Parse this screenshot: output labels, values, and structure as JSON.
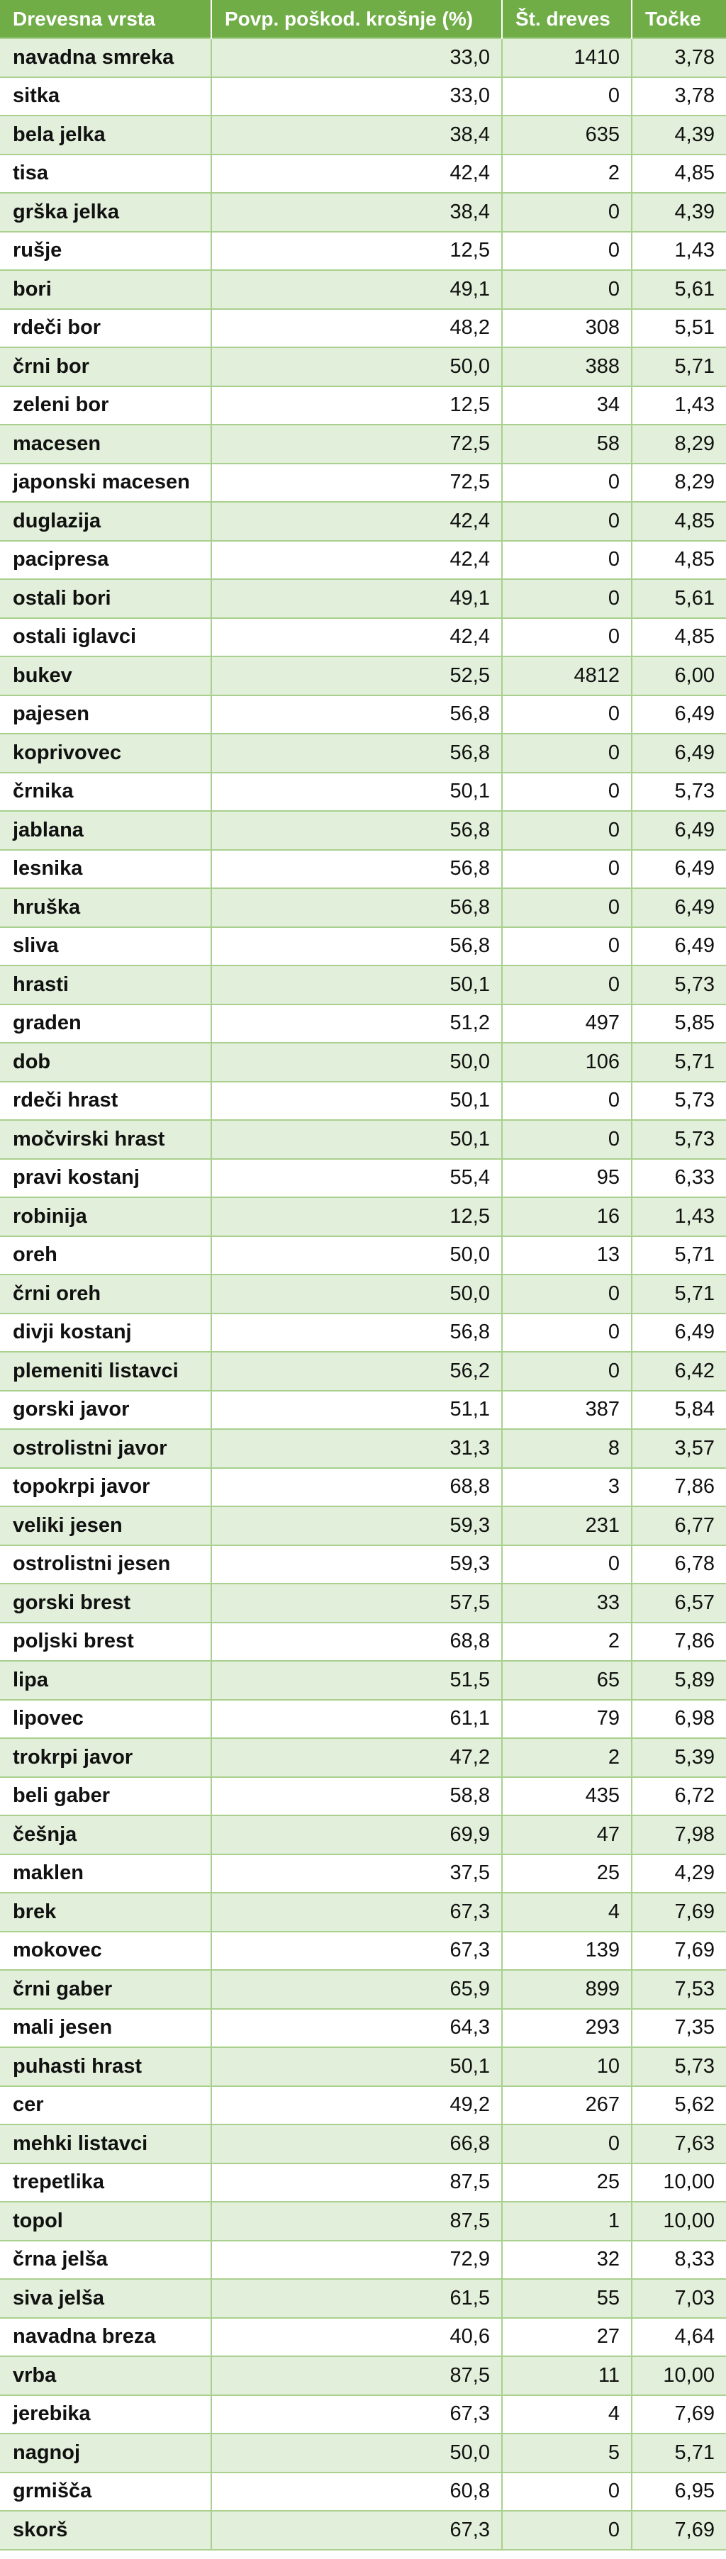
{
  "table": {
    "headers": [
      "Drevesna vrsta",
      "Povp. poškod. krošnje (%)",
      "Št. dreves",
      "Točke"
    ],
    "rows": [
      [
        "navadna smreka",
        "33,0",
        "1410",
        "3,78"
      ],
      [
        "sitka",
        "33,0",
        "0",
        "3,78"
      ],
      [
        "bela jelka",
        "38,4",
        "635",
        "4,39"
      ],
      [
        "tisa",
        "42,4",
        "2",
        "4,85"
      ],
      [
        "grška jelka",
        "38,4",
        "0",
        "4,39"
      ],
      [
        "rušje",
        "12,5",
        "0",
        "1,43"
      ],
      [
        "bori",
        "49,1",
        "0",
        "5,61"
      ],
      [
        "rdeči bor",
        "48,2",
        "308",
        "5,51"
      ],
      [
        "črni bor",
        "50,0",
        "388",
        "5,71"
      ],
      [
        "zeleni bor",
        "12,5",
        "34",
        "1,43"
      ],
      [
        "macesen",
        "72,5",
        "58",
        "8,29"
      ],
      [
        "japonski macesen",
        "72,5",
        "0",
        "8,29"
      ],
      [
        "duglazija",
        "42,4",
        "0",
        "4,85"
      ],
      [
        "pacipresa",
        "42,4",
        "0",
        "4,85"
      ],
      [
        "ostali bori",
        "49,1",
        "0",
        "5,61"
      ],
      [
        "ostali iglavci",
        "42,4",
        "0",
        "4,85"
      ],
      [
        "bukev",
        "52,5",
        "4812",
        "6,00"
      ],
      [
        "pajesen",
        "56,8",
        "0",
        "6,49"
      ],
      [
        "koprivovec",
        "56,8",
        "0",
        "6,49"
      ],
      [
        "črnika",
        "50,1",
        "0",
        "5,73"
      ],
      [
        "jablana",
        "56,8",
        "0",
        "6,49"
      ],
      [
        "lesnika",
        "56,8",
        "0",
        "6,49"
      ],
      [
        "hruška",
        "56,8",
        "0",
        "6,49"
      ],
      [
        "sliva",
        "56,8",
        "0",
        "6,49"
      ],
      [
        "hrasti",
        "50,1",
        "0",
        "5,73"
      ],
      [
        "graden",
        "51,2",
        "497",
        "5,85"
      ],
      [
        "dob",
        "50,0",
        "106",
        "5,71"
      ],
      [
        "rdeči hrast",
        "50,1",
        "0",
        "5,73"
      ],
      [
        "močvirski hrast",
        "50,1",
        "0",
        "5,73"
      ],
      [
        "pravi kostanj",
        "55,4",
        "95",
        "6,33"
      ],
      [
        "robinija",
        "12,5",
        "16",
        "1,43"
      ],
      [
        "oreh",
        "50,0",
        "13",
        "5,71"
      ],
      [
        "črni oreh",
        "50,0",
        "0",
        "5,71"
      ],
      [
        "divji kostanj",
        "56,8",
        "0",
        "6,49"
      ],
      [
        "plemeniti listavci",
        "56,2",
        "0",
        "6,42"
      ],
      [
        "gorski javor",
        "51,1",
        "387",
        "5,84"
      ],
      [
        "ostrolistni javor",
        "31,3",
        "8",
        "3,57"
      ],
      [
        "topokrpi javor",
        "68,8",
        "3",
        "7,86"
      ],
      [
        "veliki jesen",
        "59,3",
        "231",
        "6,77"
      ],
      [
        "ostrolistni jesen",
        "59,3",
        "0",
        "6,78"
      ],
      [
        "gorski brest",
        "57,5",
        "33",
        "6,57"
      ],
      [
        "poljski brest",
        "68,8",
        "2",
        "7,86"
      ],
      [
        "lipa",
        "51,5",
        "65",
        "5,89"
      ],
      [
        "lipovec",
        "61,1",
        "79",
        "6,98"
      ],
      [
        "trokrpi javor",
        "47,2",
        "2",
        "5,39"
      ],
      [
        "beli gaber",
        "58,8",
        "435",
        "6,72"
      ],
      [
        "češnja",
        "69,9",
        "47",
        "7,98"
      ],
      [
        "maklen",
        "37,5",
        "25",
        "4,29"
      ],
      [
        "brek",
        "67,3",
        "4",
        "7,69"
      ],
      [
        "mokovec",
        "67,3",
        "139",
        "7,69"
      ],
      [
        "črni gaber",
        "65,9",
        "899",
        "7,53"
      ],
      [
        "mali jesen",
        "64,3",
        "293",
        "7,35"
      ],
      [
        "puhasti hrast",
        "50,1",
        "10",
        "5,73"
      ],
      [
        "cer",
        "49,2",
        "267",
        "5,62"
      ],
      [
        "mehki listavci",
        "66,8",
        "0",
        "7,63"
      ],
      [
        "trepetlika",
        "87,5",
        "25",
        "10,00"
      ],
      [
        "topol",
        "87,5",
        "1",
        "10,00"
      ],
      [
        "črna jelša",
        "72,9",
        "32",
        "8,33"
      ],
      [
        "siva jelša",
        "61,5",
        "55",
        "7,03"
      ],
      [
        "navadna breza",
        "40,6",
        "27",
        "4,64"
      ],
      [
        "vrba",
        "87,5",
        "11",
        "10,00"
      ],
      [
        "jerebika",
        "67,3",
        "4",
        "7,69"
      ],
      [
        "nagnoj",
        "50,0",
        "5",
        "5,71"
      ],
      [
        "grmišča",
        "60,8",
        "0",
        "6,95"
      ],
      [
        "skorš",
        "67,3",
        "0",
        "7,69"
      ]
    ]
  },
  "colors": {
    "header_bg": "#70ad47",
    "header_text": "#ffffff",
    "band_row": "#e2efda",
    "plain_row": "#ffffff",
    "grid_line": "#a9d08e"
  }
}
